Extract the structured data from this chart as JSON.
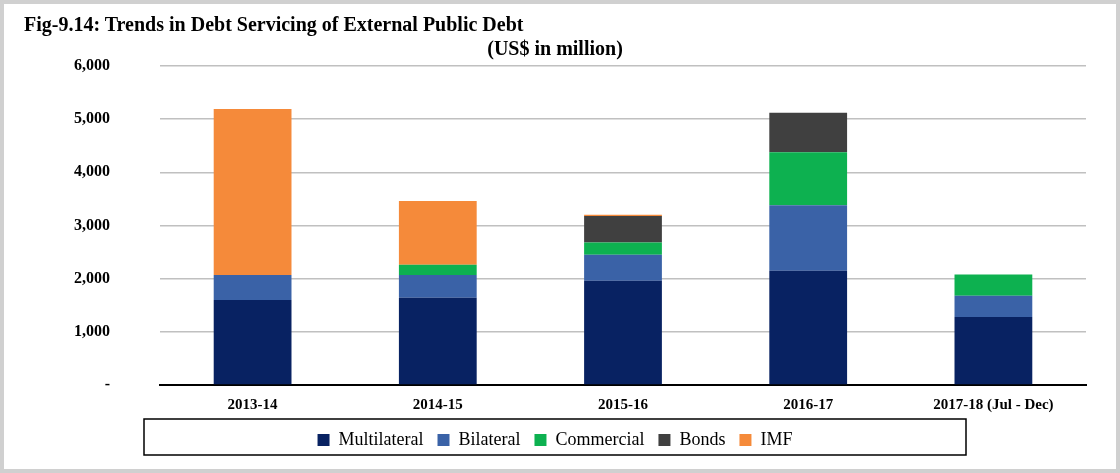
{
  "chart_data": {
    "type": "bar",
    "stacked": true,
    "title": "Fig-9.14: Trends in Debt Servicing of External Public Debt",
    "subtitle": "(US$ in million)",
    "categories": [
      "2013-14",
      "2014-15",
      "2015-16",
      "2016-17",
      "2017-18 (Jul - Dec)"
    ],
    "series": [
      {
        "name": "Multilateral",
        "color": "#082262",
        "values": [
          1600,
          1640,
          1960,
          2150,
          1280
        ]
      },
      {
        "name": "Bilateral",
        "color": "#3a62a7",
        "values": [
          470,
          430,
          490,
          1230,
          400
        ]
      },
      {
        "name": "Commercial",
        "color": "#0db150",
        "values": [
          null,
          190,
          230,
          1000,
          400
        ]
      },
      {
        "name": "Bonds",
        "color": "#404040",
        "values": [
          null,
          null,
          500,
          740,
          null
        ]
      },
      {
        "name": "IMF",
        "color": "#f58a3a",
        "values": [
          3120,
          1200,
          20,
          null,
          null
        ]
      }
    ],
    "ylim": [
      0,
      6000
    ],
    "yticks": [
      {
        "value": 0,
        "label": "-"
      },
      {
        "value": 1000,
        "label": "1,000"
      },
      {
        "value": 2000,
        "label": "2,000"
      },
      {
        "value": 3000,
        "label": "3,000"
      },
      {
        "value": 4000,
        "label": "4,000"
      },
      {
        "value": 5000,
        "label": "5,000"
      },
      {
        "value": 6000,
        "label": "6,000"
      }
    ],
    "grid": "y",
    "legend": "bottom"
  }
}
